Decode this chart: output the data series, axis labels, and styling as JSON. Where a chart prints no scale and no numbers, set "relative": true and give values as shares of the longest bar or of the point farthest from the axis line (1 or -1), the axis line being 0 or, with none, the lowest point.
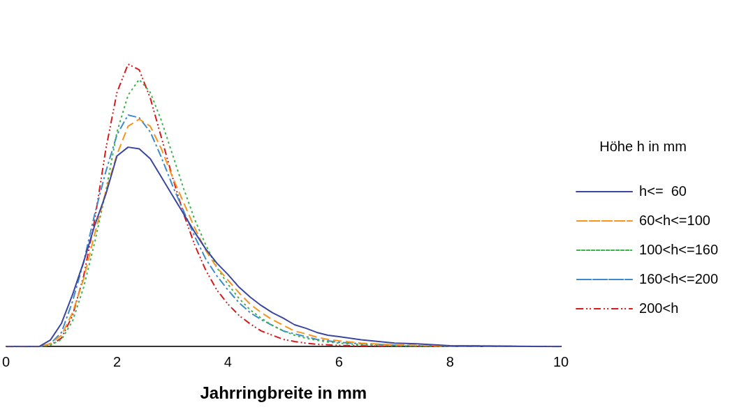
{
  "chart_data": {
    "type": "line",
    "relative": true,
    "xlabel": "Jahrringbreite in mm",
    "legend_title": "Höhe h in mm",
    "legend": "right",
    "xlim": [
      0,
      10
    ],
    "xticks": [
      0,
      2,
      4,
      6,
      8,
      10
    ],
    "grid": false,
    "marker": "none",
    "series": [
      {
        "name": "h<=  60",
        "color": "#3a46a0",
        "line_style": "solid",
        "x": [
          0,
          0.6,
          0.8,
          1.0,
          1.2,
          1.4,
          1.6,
          1.8,
          2.0,
          2.2,
          2.4,
          2.6,
          2.8,
          3.0,
          3.2,
          3.4,
          3.6,
          3.8,
          4.0,
          4.2,
          4.4,
          4.6,
          4.8,
          5.0,
          5.2,
          5.4,
          5.6,
          5.8,
          6.0,
          6.4,
          7.0,
          7.4,
          8.0,
          10
        ],
        "values": [
          0,
          0,
          0.023,
          0.082,
          0.184,
          0.3,
          0.43,
          0.54,
          0.675,
          0.706,
          0.7,
          0.665,
          0.6,
          0.535,
          0.47,
          0.405,
          0.345,
          0.295,
          0.255,
          0.21,
          0.175,
          0.145,
          0.12,
          0.1,
          0.077,
          0.065,
          0.05,
          0.04,
          0.035,
          0.024,
          0.012,
          0.01,
          0.003,
          0
        ]
      },
      {
        "name": "60<h<=100",
        "color": "#f7941d",
        "line_style": "dashed",
        "x": [
          0,
          0.6,
          0.8,
          1.0,
          1.2,
          1.4,
          1.6,
          1.8,
          2.0,
          2.2,
          2.4,
          2.6,
          2.8,
          3.0,
          3.2,
          3.4,
          3.6,
          3.8,
          4.0,
          4.2,
          4.4,
          4.6,
          4.8,
          5.0,
          5.2,
          5.4,
          5.6,
          5.8,
          6.0,
          6.4,
          7.0,
          8.0,
          10
        ],
        "values": [
          0,
          0,
          0.01,
          0.04,
          0.12,
          0.24,
          0.4,
          0.55,
          0.68,
          0.78,
          0.805,
          0.78,
          0.7,
          0.6,
          0.51,
          0.42,
          0.34,
          0.28,
          0.235,
          0.19,
          0.15,
          0.12,
          0.095,
          0.075,
          0.055,
          0.045,
          0.033,
          0.025,
          0.02,
          0.012,
          0.006,
          0.002,
          0
        ]
      },
      {
        "name": "100<h<=160",
        "color": "#3cb44b",
        "line_style": "dotted",
        "x": [
          0,
          0.6,
          0.8,
          1.0,
          1.2,
          1.4,
          1.6,
          1.8,
          2.0,
          2.2,
          2.4,
          2.6,
          2.8,
          3.0,
          3.2,
          3.4,
          3.6,
          3.8,
          4.0,
          4.2,
          4.4,
          4.6,
          4.8,
          5.0,
          5.2,
          5.4,
          5.6,
          5.8,
          6.0,
          6.4,
          7.0,
          8.0,
          10
        ],
        "values": [
          0,
          0,
          0.005,
          0.025,
          0.09,
          0.21,
          0.37,
          0.55,
          0.76,
          0.89,
          0.946,
          0.9,
          0.8,
          0.68,
          0.56,
          0.45,
          0.36,
          0.28,
          0.22,
          0.17,
          0.13,
          0.1,
          0.075,
          0.055,
          0.04,
          0.03,
          0.022,
          0.016,
          0.012,
          0.007,
          0.003,
          0.001,
          0
        ]
      },
      {
        "name": "160<h<=200",
        "color": "#3d8ad0",
        "line_style": "dashdot",
        "x": [
          0,
          0.6,
          0.8,
          1.0,
          1.2,
          1.4,
          1.6,
          1.8,
          2.0,
          2.2,
          2.4,
          2.6,
          2.8,
          3.0,
          3.2,
          3.4,
          3.6,
          3.8,
          4.0,
          4.2,
          4.4,
          4.6,
          4.8,
          5.0,
          5.2,
          5.4,
          5.6,
          5.8,
          6.0,
          6.4,
          7.0,
          8.0,
          10
        ],
        "values": [
          0,
          0,
          0.01,
          0.05,
          0.16,
          0.3,
          0.47,
          0.62,
          0.75,
          0.82,
          0.81,
          0.76,
          0.67,
          0.57,
          0.48,
          0.39,
          0.31,
          0.25,
          0.2,
          0.155,
          0.12,
          0.095,
          0.075,
          0.055,
          0.045,
          0.035,
          0.025,
          0.02,
          0.015,
          0.01,
          0.005,
          0.002,
          0
        ]
      },
      {
        "name": "200<h",
        "color": "#d7191c",
        "line_style": "dashdotdot",
        "x": [
          0,
          0.6,
          0.8,
          1.0,
          1.2,
          1.4,
          1.6,
          1.8,
          2.0,
          2.2,
          2.4,
          2.6,
          2.8,
          3.0,
          3.2,
          3.4,
          3.6,
          3.8,
          4.0,
          4.2,
          4.4,
          4.6,
          4.8,
          5.0,
          5.2,
          5.4,
          5.6,
          6.0,
          7.0,
          10
        ],
        "values": [
          0,
          0,
          0.005,
          0.03,
          0.11,
          0.25,
          0.45,
          0.7,
          0.9,
          1.0,
          0.98,
          0.88,
          0.74,
          0.6,
          0.47,
          0.36,
          0.27,
          0.2,
          0.15,
          0.11,
          0.08,
          0.055,
          0.04,
          0.025,
          0.018,
          0.012,
          0.008,
          0.004,
          0.001,
          0
        ]
      }
    ]
  }
}
